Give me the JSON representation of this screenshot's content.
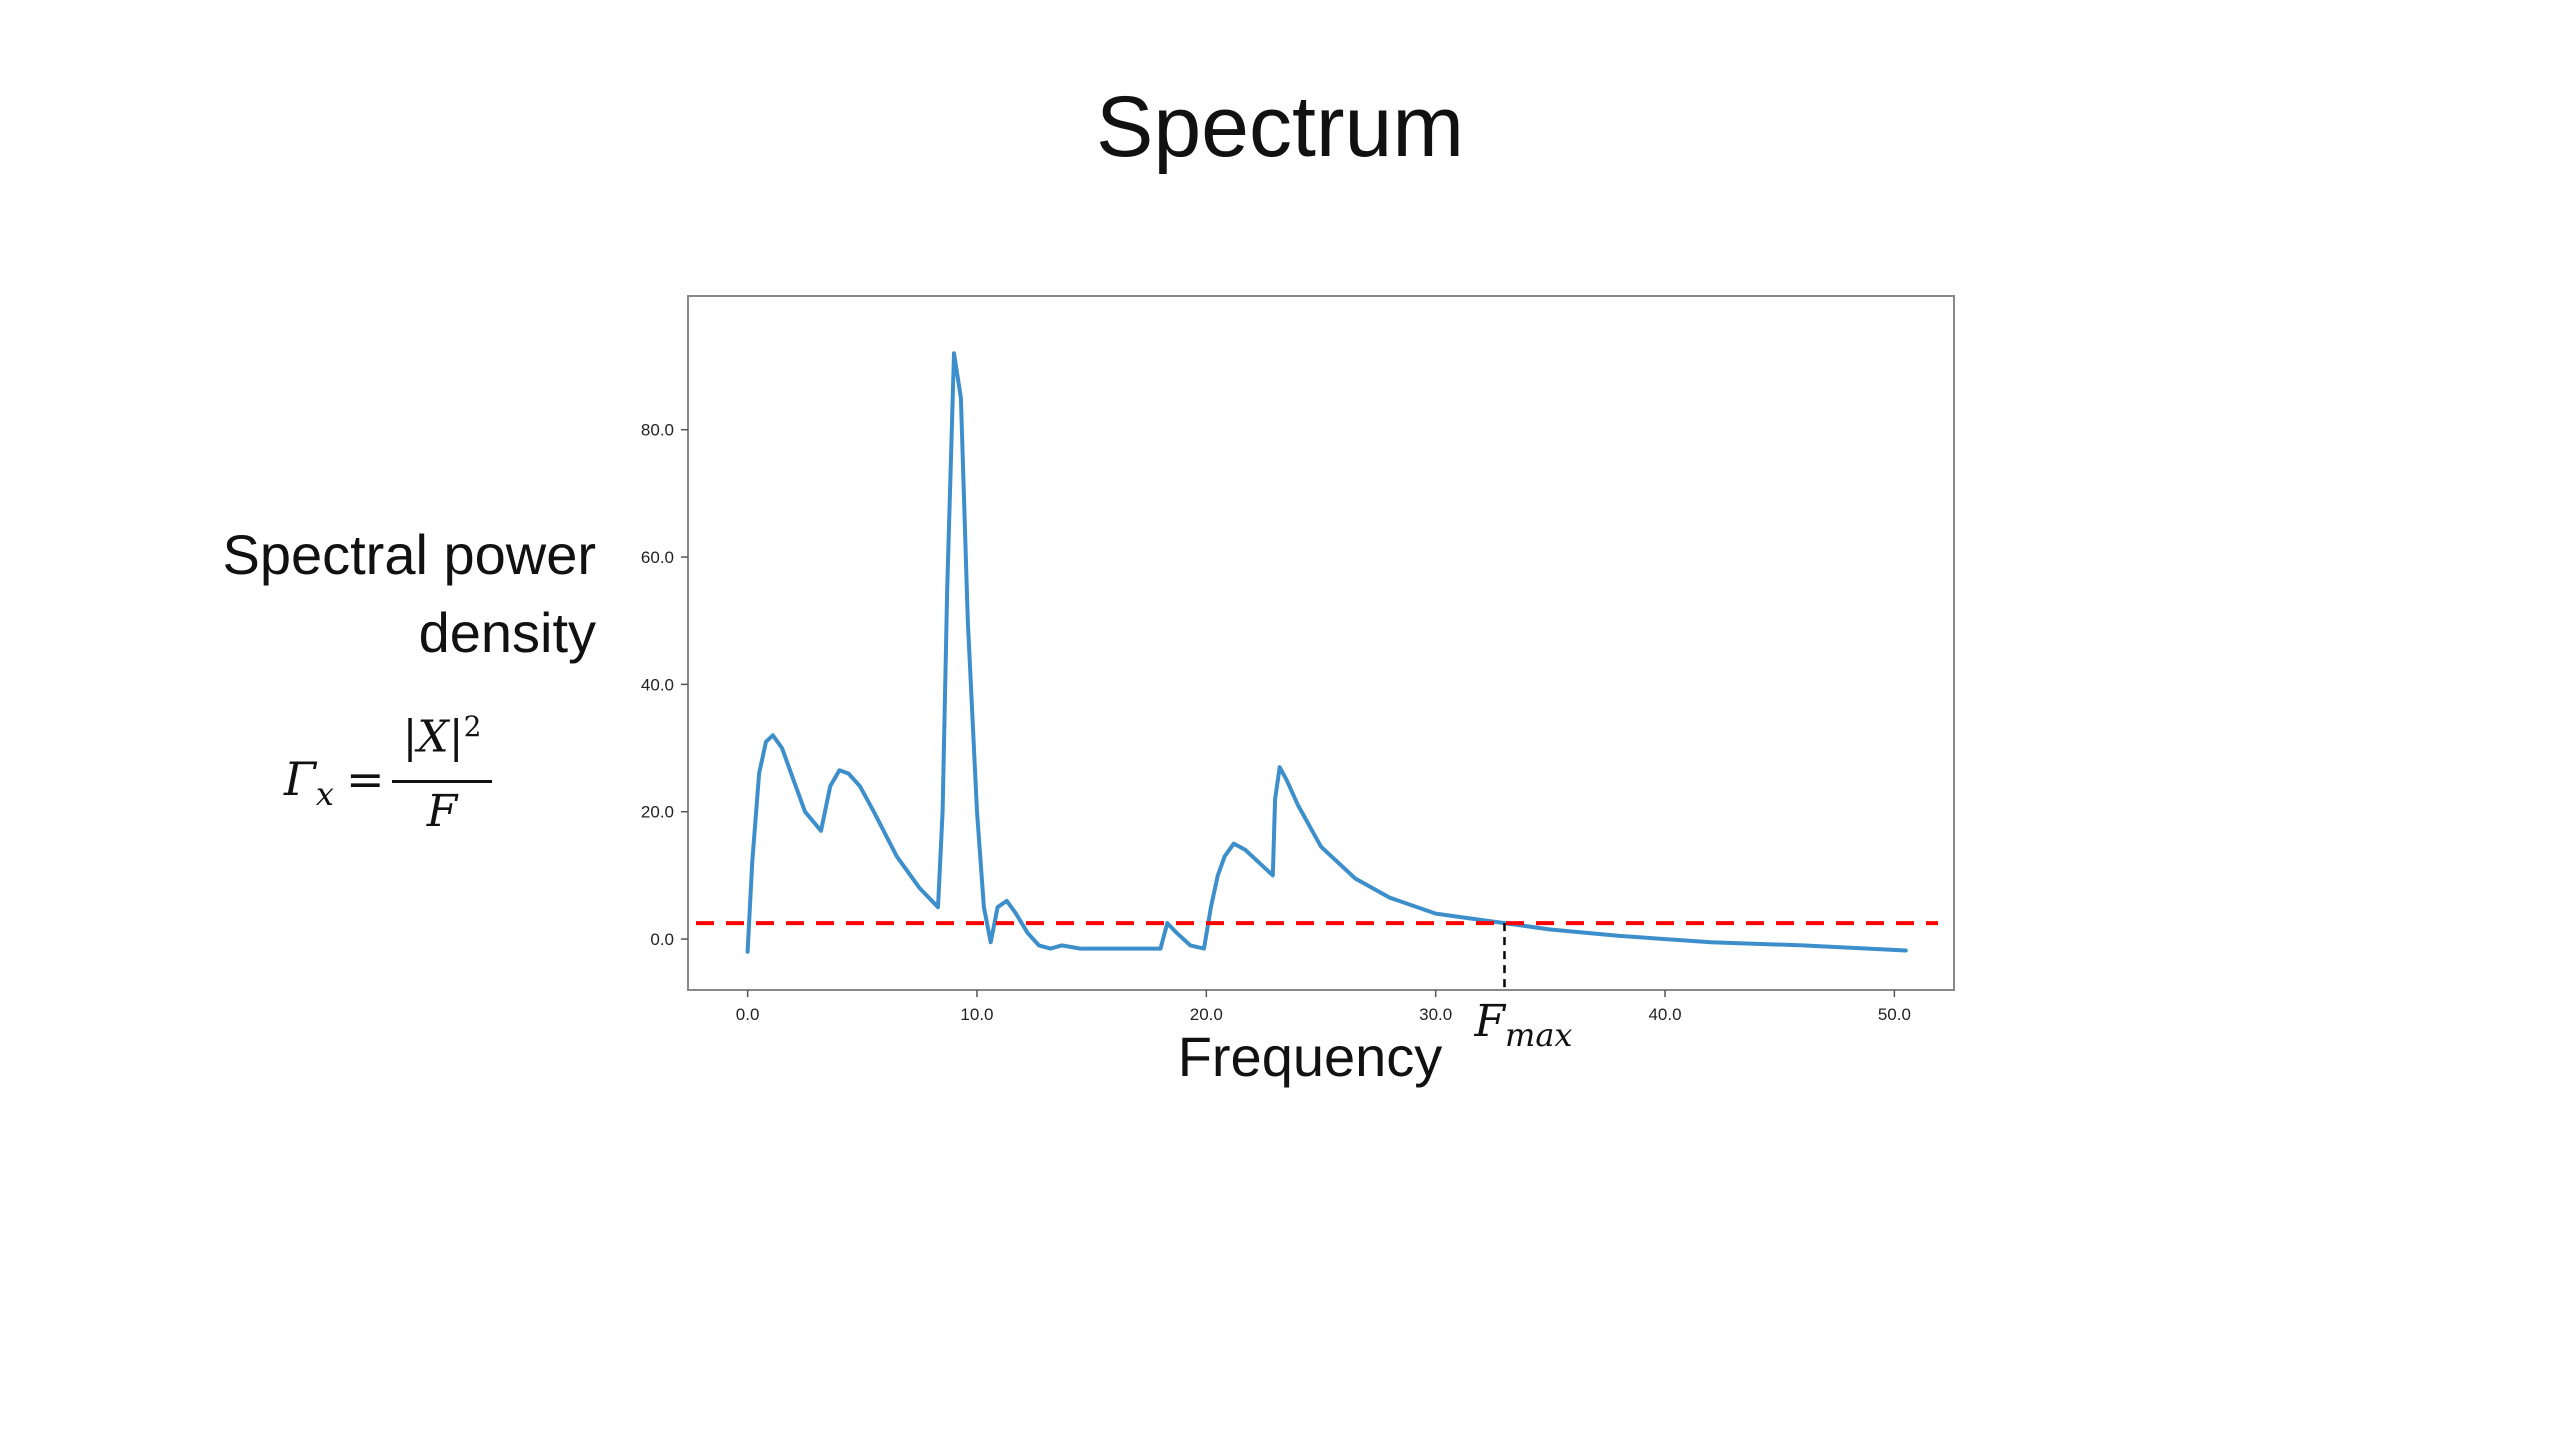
{
  "slide": {
    "title": "Spectrum",
    "ylabel_line1": "Spectral power",
    "ylabel_line2": "density",
    "xlabel": "Frequency",
    "formula": {
      "lhs": "Γ",
      "lhs_sub": "x",
      "eq": "=",
      "num": "|X|",
      "num_sup": "2",
      "den": "F"
    }
  },
  "chart_data": {
    "type": "line",
    "title": "",
    "xlabel": "",
    "ylabel": "",
    "xlim": [
      -2.6,
      52.6
    ],
    "ylim": [
      -8,
      101
    ],
    "xticks": [
      0,
      10,
      20,
      30,
      40,
      50
    ],
    "xtick_labels": [
      "0.0",
      "10.0",
      "20.0",
      "30.0",
      "40.0",
      "50.0"
    ],
    "yticks": [
      0,
      20,
      40,
      60,
      80
    ],
    "ytick_labels": [
      "0.0",
      "20.0",
      "40.0",
      "60.0",
      "80.0"
    ],
    "grid": false,
    "series": [
      {
        "color": "#3d8fcc",
        "x": [
          0,
          0.2,
          0.5,
          0.8,
          1.1,
          1.5,
          2.0,
          2.5,
          3.2,
          3.6,
          4.0,
          4.4,
          4.9,
          5.5,
          6.5,
          7.5,
          8.3,
          8.5,
          8.7,
          9.0,
          9.3,
          9.6,
          10.0,
          10.3,
          10.6,
          10.9,
          11.3,
          11.7,
          12.2,
          12.7,
          13.2,
          13.7,
          14.5,
          15.0,
          16.5,
          17.5,
          18.0,
          18.3,
          18.7,
          19.3,
          19.9,
          20.2,
          20.5,
          20.8,
          21.2,
          21.7,
          22.3,
          22.9,
          23.0,
          23.2,
          23.5,
          24.0,
          25.0,
          26.5,
          28.0,
          30.0,
          32.0,
          33.0,
          35.0,
          38.0,
          42.0,
          46.0,
          50.5
        ],
        "y": [
          -2,
          12,
          26,
          31,
          32,
          30,
          25,
          20,
          17,
          24,
          26.5,
          26,
          24,
          20,
          13,
          8,
          5,
          20,
          55,
          92,
          85,
          50,
          20,
          5,
          -0.5,
          5,
          6,
          4,
          1,
          -1,
          -1.5,
          -1,
          -1.5,
          -1.5,
          -1.5,
          -1.5,
          -1.5,
          2.5,
          1,
          -1,
          -1.5,
          5,
          10,
          13,
          15,
          14,
          12,
          10,
          22,
          27,
          25,
          21,
          14.5,
          9.5,
          6.5,
          4,
          3,
          2.5,
          1.5,
          0.5,
          -0.5,
          -1,
          -1.8
        ]
      }
    ],
    "threshold": {
      "y": 2.5,
      "color": "#ff0000",
      "style": "dashed"
    },
    "marker": {
      "x": 33.0,
      "label_main": "F",
      "label_sub": "max",
      "style": "dashed",
      "color": "#000000"
    }
  }
}
